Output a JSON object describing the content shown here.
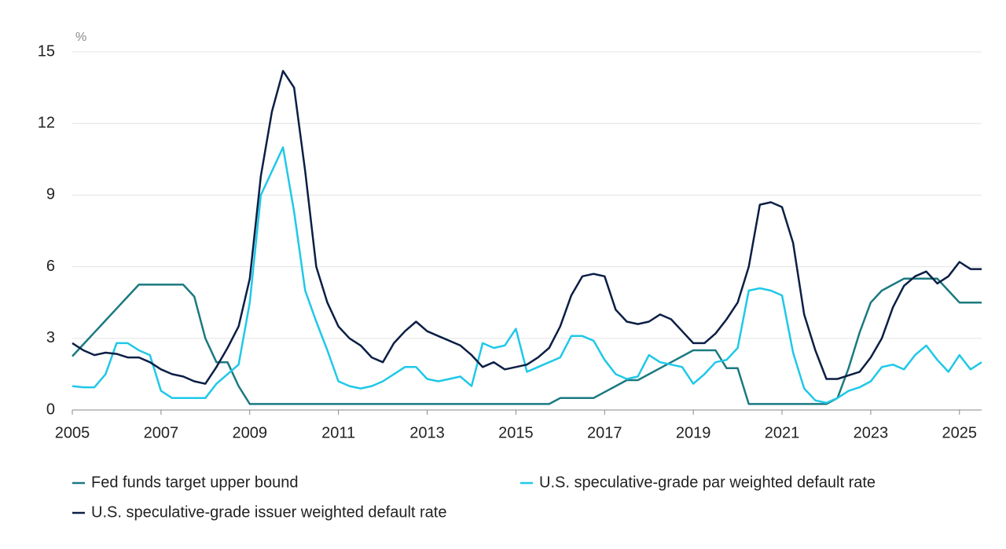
{
  "chart_data": {
    "type": "line",
    "y_label": "%",
    "x": [
      2005,
      2005.25,
      2005.5,
      2005.75,
      2006,
      2006.25,
      2006.5,
      2006.75,
      2007,
      2007.25,
      2007.5,
      2007.75,
      2008,
      2008.25,
      2008.5,
      2008.75,
      2009,
      2009.25,
      2009.5,
      2009.75,
      2010,
      2010.25,
      2010.5,
      2010.75,
      2011,
      2011.25,
      2011.5,
      2011.75,
      2012,
      2012.25,
      2012.5,
      2012.75,
      2013,
      2013.25,
      2013.5,
      2013.75,
      2014,
      2014.25,
      2014.5,
      2014.75,
      2015,
      2015.25,
      2015.5,
      2015.75,
      2016,
      2016.25,
      2016.5,
      2016.75,
      2017,
      2017.25,
      2017.5,
      2017.75,
      2018,
      2018.25,
      2018.5,
      2018.75,
      2019,
      2019.25,
      2019.5,
      2019.75,
      2020,
      2020.25,
      2020.5,
      2020.75,
      2021,
      2021.25,
      2021.5,
      2021.75,
      2022,
      2022.25,
      2022.5,
      2022.75,
      2023,
      2023.25,
      2023.5,
      2023.75,
      2024,
      2024.25,
      2024.5,
      2024.75,
      2025,
      2025.25,
      2025.5
    ],
    "series": [
      {
        "name": "Fed funds target upper bound",
        "color": "#1a7a80",
        "values": [
          2.25,
          2.75,
          3.25,
          3.75,
          4.25,
          4.75,
          5.25,
          5.25,
          5.25,
          5.25,
          5.25,
          4.75,
          3.0,
          2.0,
          2.0,
          1.0,
          0.25,
          0.25,
          0.25,
          0.25,
          0.25,
          0.25,
          0.25,
          0.25,
          0.25,
          0.25,
          0.25,
          0.25,
          0.25,
          0.25,
          0.25,
          0.25,
          0.25,
          0.25,
          0.25,
          0.25,
          0.25,
          0.25,
          0.25,
          0.25,
          0.25,
          0.25,
          0.25,
          0.25,
          0.5,
          0.5,
          0.5,
          0.5,
          0.75,
          1.0,
          1.25,
          1.25,
          1.5,
          1.75,
          2.0,
          2.25,
          2.5,
          2.5,
          2.5,
          1.75,
          1.75,
          0.25,
          0.25,
          0.25,
          0.25,
          0.25,
          0.25,
          0.25,
          0.25,
          0.5,
          1.75,
          3.25,
          4.5,
          5.0,
          5.25,
          5.5,
          5.5,
          5.5,
          5.5,
          5.0,
          4.5,
          4.5,
          4.5
        ]
      },
      {
        "name": "U.S. speculative-grade par weighted default rate",
        "color": "#1fc8e8",
        "values": [
          1.0,
          0.95,
          0.95,
          1.5,
          2.8,
          2.8,
          2.5,
          2.3,
          0.8,
          0.5,
          0.5,
          0.5,
          0.5,
          1.1,
          1.5,
          1.9,
          4.5,
          9.0,
          10.0,
          11.0,
          8.3,
          5.0,
          3.7,
          2.5,
          1.2,
          1.0,
          0.9,
          1.0,
          1.2,
          1.5,
          1.8,
          1.8,
          1.3,
          1.2,
          1.3,
          1.4,
          1.0,
          2.8,
          2.6,
          2.7,
          3.4,
          1.6,
          1.8,
          2.0,
          2.2,
          3.1,
          3.1,
          2.9,
          2.1,
          1.5,
          1.3,
          1.4,
          2.3,
          2.0,
          1.9,
          1.8,
          1.1,
          1.5,
          2.0,
          2.1,
          2.6,
          5.0,
          5.1,
          5.0,
          4.8,
          2.4,
          0.9,
          0.4,
          0.3,
          0.5,
          0.8,
          0.95,
          1.2,
          1.8,
          1.9,
          1.7,
          2.3,
          2.7,
          2.1,
          1.6,
          2.3,
          1.7,
          2.0
        ]
      },
      {
        "name": "U.S. speculative-grade issuer weighted default rate",
        "color": "#0b1f45",
        "values": [
          2.8,
          2.5,
          2.3,
          2.4,
          2.35,
          2.2,
          2.2,
          2.0,
          1.7,
          1.5,
          1.4,
          1.2,
          1.1,
          1.8,
          2.6,
          3.5,
          5.5,
          9.8,
          12.5,
          14.2,
          13.5,
          10.0,
          6.0,
          4.5,
          3.5,
          3.0,
          2.7,
          2.2,
          2.0,
          2.8,
          3.3,
          3.7,
          3.3,
          3.1,
          2.9,
          2.7,
          2.3,
          1.8,
          2.0,
          1.7,
          1.8,
          1.9,
          2.2,
          2.6,
          3.5,
          4.8,
          5.6,
          5.7,
          5.6,
          4.2,
          3.7,
          3.6,
          3.7,
          4.0,
          3.8,
          3.3,
          2.8,
          2.8,
          3.2,
          3.8,
          4.5,
          6.0,
          8.6,
          8.7,
          8.5,
          7.0,
          4.0,
          2.5,
          1.3,
          1.3,
          1.45,
          1.6,
          2.2,
          3.0,
          4.3,
          5.2,
          5.6,
          5.8,
          5.3,
          5.6,
          6.2,
          5.9,
          5.9
        ]
      }
    ],
    "xlim": [
      2005,
      2025.5
    ],
    "xticks": [
      2005,
      2007,
      2009,
      2011,
      2013,
      2015,
      2017,
      2019,
      2021,
      2023,
      2025
    ],
    "ylim": [
      0,
      15
    ],
    "yticks": [
      0,
      3,
      6,
      9,
      12,
      15
    ],
    "grid": true
  }
}
